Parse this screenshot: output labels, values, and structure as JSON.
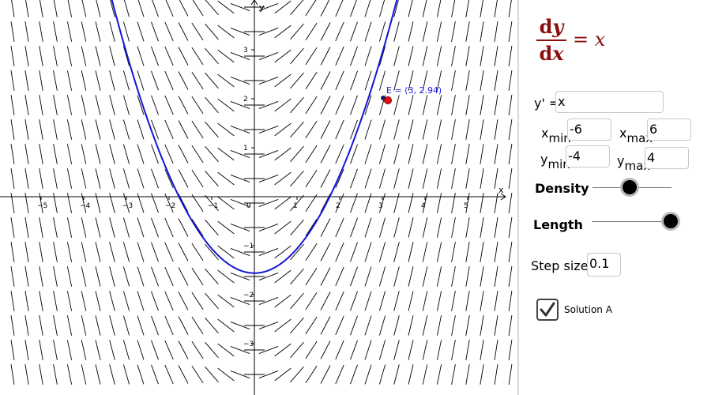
{
  "graph": {
    "x_axis_label": "x",
    "y_axis_label": "y",
    "x_ticks": [
      "−5",
      "−4",
      "−3",
      "−2",
      "−1",
      "0",
      "1",
      "2",
      "3",
      "4",
      "5"
    ],
    "y_ticks": [
      "3",
      "2",
      "1",
      "−1",
      "−2",
      "−3"
    ],
    "point_label": "E = (3, 2.94)",
    "curve_color": "#1515d6",
    "point_color": "#e41010",
    "slope_field_color": "#000000"
  },
  "panel": {
    "formula": {
      "num_d": "d",
      "num_var": "y",
      "den_d": "d",
      "den_var": "x",
      "rhs": "= x"
    },
    "equation_label": "y' =",
    "equation_value": "x",
    "xmin_label": "x",
    "xmin_sub": "min",
    "xmin_value": "-6",
    "xmax_label": "x",
    "xmax_sub": "max",
    "xmax_value": "6",
    "ymin_label": "y",
    "ymin_sub": "min",
    "ymin_value": "-4",
    "ymax_label": "y",
    "ymax_sub": "max",
    "ymax_value": "4",
    "density_label": "Density",
    "density_level": 0.47,
    "length_label": "Length",
    "length_level": 1.0,
    "step_label": "Step size:",
    "step_value": "0.1",
    "solution_label": "Solution A",
    "solution_checked": true
  }
}
